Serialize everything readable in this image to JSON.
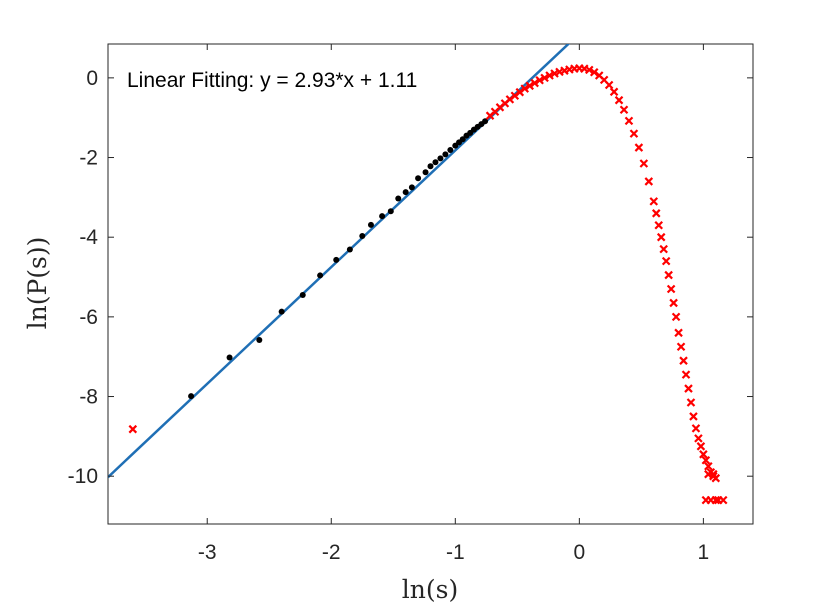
{
  "chart_data": {
    "type": "scatter",
    "xlabel": "ln(s)",
    "ylabel": "ln(P(s))",
    "xlim": [
      -3.8,
      1.4
    ],
    "ylim": [
      -11.2,
      0.85
    ],
    "x_ticks": [
      -3,
      -2,
      -1,
      0,
      1
    ],
    "y_ticks": [
      0,
      -2,
      -4,
      -6,
      -8,
      -10
    ],
    "x_tick_labels": [
      "-3",
      "-2",
      "-1",
      "0",
      "1"
    ],
    "y_tick_labels": [
      "0",
      "-2",
      "-4",
      "-6",
      "-8",
      "-10"
    ],
    "annotation": "Linear Fitting:  y = 2.93*x + 1.11",
    "grid": false,
    "colors": {
      "fit_line": "#1f6fb5",
      "black_points": "#000000",
      "red_points": "#ff0000"
    },
    "series": [
      {
        "marker": "dot",
        "color": "#000000",
        "x": [
          -3.13,
          -2.82,
          -2.58,
          -2.4,
          -2.23,
          -2.09,
          -1.96,
          -1.85,
          -1.75,
          -1.68,
          -1.59,
          -1.52,
          -1.46,
          -1.4,
          -1.35,
          -1.3,
          -1.24,
          -1.2,
          -1.16,
          -1.12,
          -1.08,
          -1.04,
          -1.0,
          -0.97,
          -0.94,
          -0.91,
          -0.88,
          -0.85,
          -0.82,
          -0.79,
          -0.76
        ],
        "y": [
          -7.99,
          -7.02,
          -6.58,
          -5.87,
          -5.45,
          -4.96,
          -4.57,
          -4.31,
          -3.97,
          -3.69,
          -3.47,
          -3.35,
          -3.03,
          -2.87,
          -2.75,
          -2.52,
          -2.37,
          -2.22,
          -2.12,
          -2.02,
          -1.92,
          -1.81,
          -1.7,
          -1.62,
          -1.54,
          -1.45,
          -1.38,
          -1.3,
          -1.23,
          -1.16,
          -1.09
        ]
      },
      {
        "marker": "x",
        "color": "#ff0000",
        "x": [
          -3.6,
          -0.72,
          -0.68,
          -0.64,
          -0.6,
          -0.56,
          -0.52,
          -0.48,
          -0.44,
          -0.4,
          -0.36,
          -0.32,
          -0.28,
          -0.24,
          -0.2,
          -0.16,
          -0.12,
          -0.08,
          -0.04,
          0.0,
          0.04,
          0.08,
          0.12,
          0.16,
          0.2,
          0.24,
          0.28,
          0.32,
          0.36,
          0.4,
          0.44,
          0.48,
          0.52,
          0.56,
          0.6,
          0.62,
          0.64,
          0.66,
          0.68,
          0.7,
          0.72,
          0.74,
          0.76,
          0.78,
          0.8,
          0.82,
          0.84,
          0.86,
          0.88,
          0.9,
          0.92,
          0.94,
          0.96,
          0.98,
          1.0,
          1.02,
          1.04,
          1.06,
          1.08,
          1.1,
          1.02,
          1.06,
          1.1,
          1.04,
          1.08,
          1.12,
          1.16
        ],
        "y": [
          -8.82,
          -0.95,
          -0.85,
          -0.74,
          -0.64,
          -0.54,
          -0.45,
          -0.36,
          -0.27,
          -0.2,
          -0.13,
          -0.06,
          0.0,
          0.06,
          0.11,
          0.15,
          0.18,
          0.21,
          0.23,
          0.24,
          0.23,
          0.2,
          0.14,
          0.06,
          -0.05,
          -0.18,
          -0.35,
          -0.56,
          -0.8,
          -1.08,
          -1.4,
          -1.75,
          -2.15,
          -2.6,
          -3.1,
          -3.4,
          -3.7,
          -4.0,
          -4.3,
          -4.6,
          -4.95,
          -5.3,
          -5.65,
          -6.0,
          -6.4,
          -6.75,
          -7.1,
          -7.45,
          -7.8,
          -8.15,
          -8.5,
          -8.8,
          -9.05,
          -9.25,
          -9.45,
          -9.6,
          -9.75,
          -9.9,
          -10.0,
          -10.05,
          -10.6,
          -10.6,
          -10.6,
          -9.95,
          -9.95,
          -10.6,
          -10.6
        ]
      }
    ],
    "fit": {
      "slope": 2.93,
      "intercept": 1.11
    }
  }
}
